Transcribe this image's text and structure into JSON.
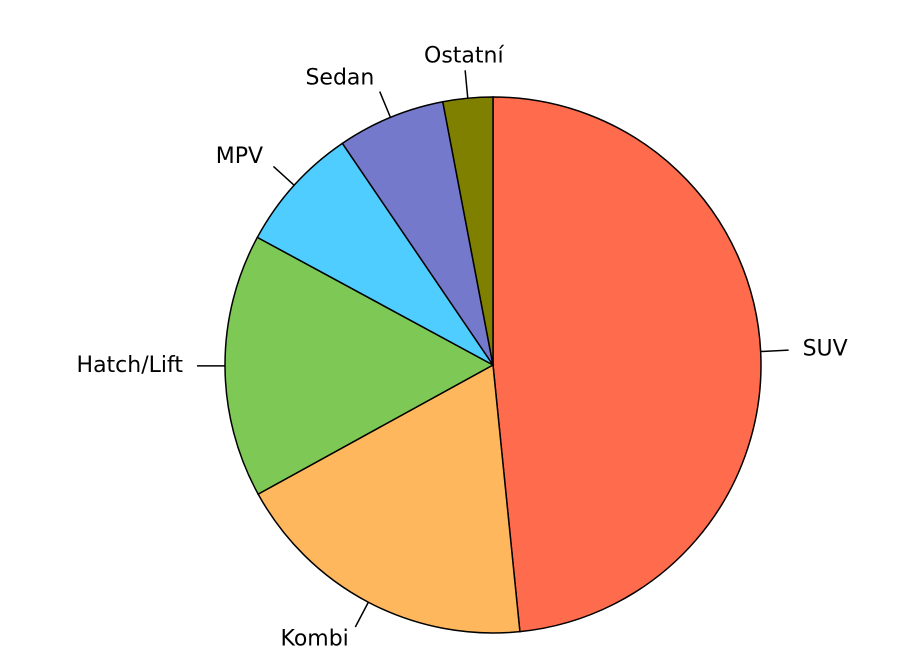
{
  "chart_data": {
    "type": "pie",
    "categories": [
      "SUV",
      "Kombi",
      "Hatch/Lift",
      "MPV",
      "Sedan",
      "Ostatní"
    ],
    "values": [
      48.4,
      18.6,
      15.9,
      7.6,
      6.5,
      3.0
    ],
    "colors": [
      "#ff6b4d",
      "#ffb75e",
      "#7ec855",
      "#4fcdff",
      "#7479cc",
      "#808000"
    ]
  }
}
